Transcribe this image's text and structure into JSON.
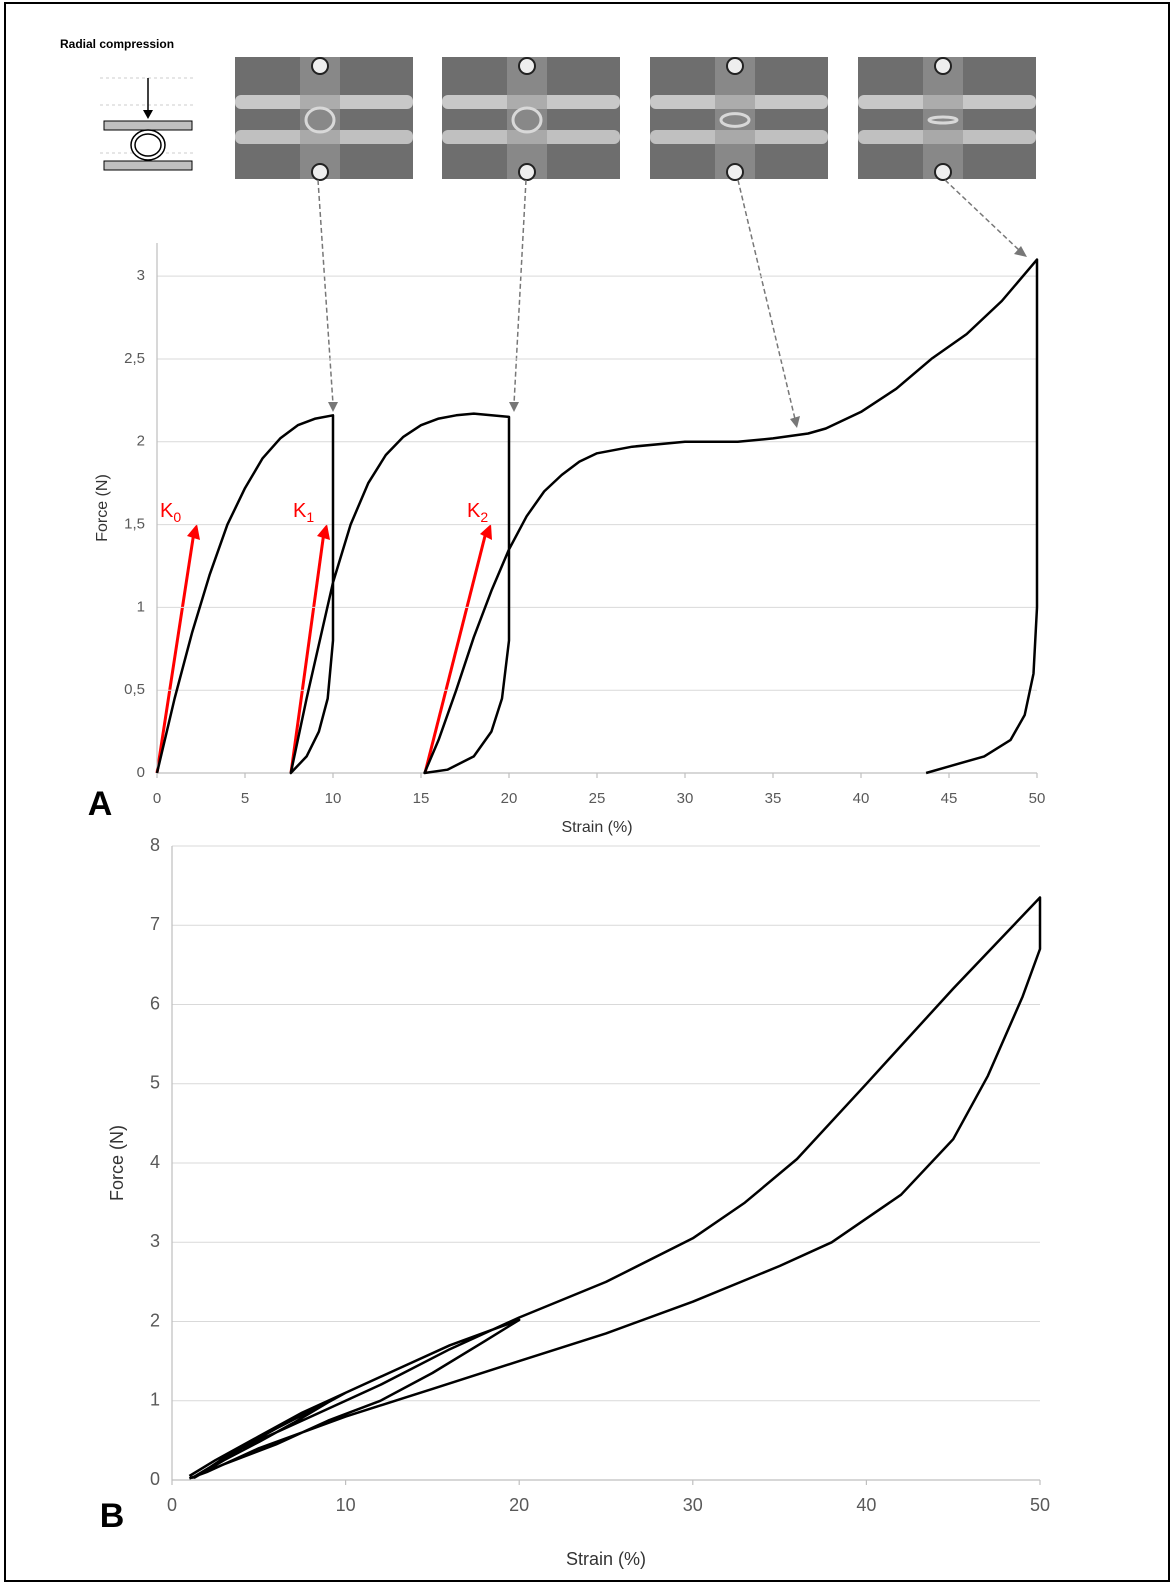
{
  "header": {
    "title": "Radial compression"
  },
  "chart_data": [
    {
      "type": "line",
      "panel": "A",
      "xlabel": "Strain (%)",
      "ylabel": "Force (N)",
      "xlim": [
        0,
        50
      ],
      "xticks": [
        0,
        5,
        10,
        15,
        20,
        25,
        30,
        35,
        40,
        45,
        50
      ],
      "ylim": [
        0,
        3.2
      ],
      "yticks": [
        0,
        {
          "value": 0.5,
          "label": "0,5"
        },
        1,
        {
          "value": 1.5,
          "label": "1,5"
        },
        2,
        {
          "value": 2.5,
          "label": "2,5"
        },
        3
      ],
      "grid": true,
      "annotations": [
        {
          "text": "K",
          "sub": "0"
        },
        {
          "text": "K",
          "sub": "1"
        },
        {
          "text": "K",
          "sub": "2"
        }
      ],
      "series": [
        {
          "color": "#000000",
          "x": [
            0,
            1,
            2,
            3,
            4,
            5,
            6,
            7,
            8,
            9,
            10,
            10,
            10,
            9.7,
            9.2,
            8.5,
            7.6,
            8.5,
            10,
            11,
            12,
            13,
            14,
            15,
            16,
            17,
            18,
            19,
            20,
            20,
            20,
            19.6,
            19,
            18,
            16.5,
            15.2,
            16,
            17,
            18,
            19,
            20,
            21,
            22,
            23,
            24,
            25,
            27,
            30,
            33,
            35,
            37,
            38,
            40,
            42,
            44,
            46,
            48,
            50,
            50,
            49.8,
            49.3,
            48.5,
            47,
            45,
            43.7
          ],
          "values": [
            0,
            0.45,
            0.85,
            1.2,
            1.5,
            1.72,
            1.9,
            2.02,
            2.1,
            2.14,
            2.16,
            1.5,
            0.8,
            0.45,
            0.25,
            0.1,
            0,
            0.45,
            1.15,
            1.5,
            1.75,
            1.92,
            2.03,
            2.1,
            2.14,
            2.16,
            2.17,
            2.16,
            2.15,
            1.5,
            0.8,
            0.45,
            0.25,
            0.1,
            0.02,
            0,
            0.2,
            0.5,
            0.82,
            1.1,
            1.35,
            1.55,
            1.7,
            1.8,
            1.88,
            1.93,
            1.97,
            2.0,
            2.0,
            2.02,
            2.05,
            2.08,
            2.18,
            2.32,
            2.5,
            2.65,
            2.85,
            3.1,
            1.0,
            0.6,
            0.35,
            0.2,
            0.1,
            0.04,
            0
          ]
        }
      ]
    },
    {
      "type": "line",
      "panel": "B",
      "xlabel": "Strain (%)",
      "ylabel": "Force (N)",
      "xlim": [
        0,
        50
      ],
      "xticks": [
        0,
        10,
        20,
        30,
        40,
        50
      ],
      "ylim": [
        0,
        8
      ],
      "yticks": [
        0,
        1,
        2,
        3,
        4,
        5,
        6,
        7,
        8
      ],
      "grid": true,
      "series": [
        {
          "color": "#000000",
          "x": [
            1,
            2.5,
            5,
            7.5,
            10,
            9,
            7,
            5,
            3,
            1.3,
            3,
            6,
            10,
            13,
            16,
            20,
            18,
            15,
            12,
            9,
            6,
            3,
            1.2,
            4,
            8,
            12,
            16,
            20,
            25,
            30,
            33,
            36,
            40,
            45,
            50,
            50,
            49,
            47,
            45,
            42,
            38,
            35,
            30,
            25,
            20,
            15,
            10,
            5,
            2,
            1
          ],
          "values": [
            0.05,
            0.25,
            0.55,
            0.85,
            1.1,
            0.98,
            0.72,
            0.48,
            0.25,
            0.03,
            0.28,
            0.65,
            1.1,
            1.4,
            1.7,
            2.02,
            1.75,
            1.35,
            1.0,
            0.75,
            0.45,
            0.2,
            0.03,
            0.4,
            0.8,
            1.2,
            1.65,
            2.05,
            2.5,
            3.05,
            3.5,
            4.05,
            5.0,
            6.2,
            7.35,
            6.7,
            6.1,
            5.1,
            4.3,
            3.6,
            3.0,
            2.7,
            2.25,
            1.85,
            1.5,
            1.15,
            0.8,
            0.4,
            0.1,
            0.02
          ]
        }
      ]
    }
  ]
}
